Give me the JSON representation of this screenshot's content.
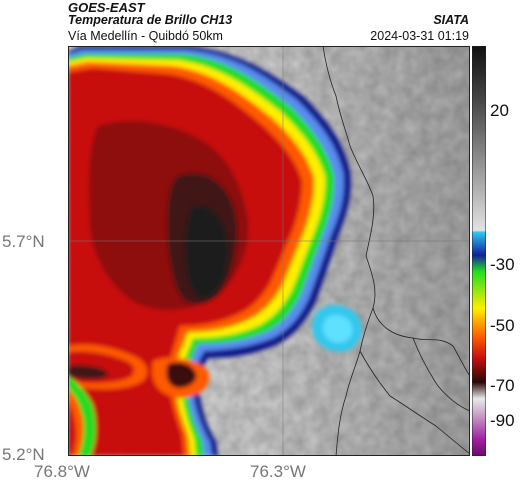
{
  "header": {
    "satellite": "GOES-EAST",
    "product": "Temperatura de Brillo CH13",
    "route": "Vía Medellín - Quibdó 50km",
    "source": "SIATA",
    "timestamp": "2024-03-31 01:19"
  },
  "axes": {
    "lat_labels": [
      "5.7°N",
      "5.2°N"
    ],
    "lon_labels": [
      "76.8°W",
      "76.3°W"
    ]
  },
  "colorbar": {
    "ticks": [
      "20",
      "-30",
      "-50",
      "-70",
      "-90"
    ]
  },
  "colors": {
    "cold_core": "#1e1a1a",
    "red": "#c81010",
    "orange": "#ff5a00",
    "yellow": "#ffee00",
    "green": "#22dd22",
    "blue": "#1020a0",
    "cyan": "#30c8ee",
    "warm_gray": "#bdbdbd"
  }
}
